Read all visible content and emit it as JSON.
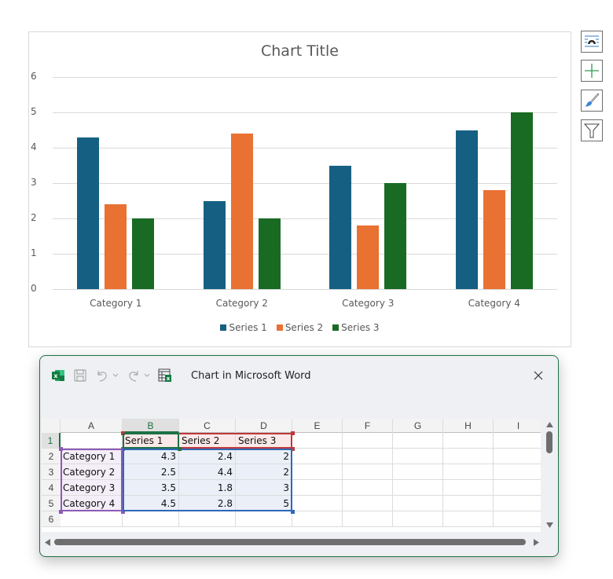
{
  "chart": {
    "title": "Chart Title",
    "y_ticks": [
      "0",
      "1",
      "2",
      "3",
      "4",
      "5",
      "6"
    ],
    "categories": [
      "Category 1",
      "Category 2",
      "Category 3",
      "Category 4"
    ],
    "legend": [
      "Series 1",
      "Series 2",
      "Series 3"
    ]
  },
  "chart_data": {
    "type": "bar",
    "title": "Chart Title",
    "xlabel": "",
    "ylabel": "",
    "categories": [
      "Category 1",
      "Category 2",
      "Category 3",
      "Category 4"
    ],
    "series": [
      {
        "name": "Series 1",
        "color": "#156082",
        "values": [
          4.3,
          2.5,
          3.5,
          4.5
        ]
      },
      {
        "name": "Series 2",
        "color": "#e97132",
        "values": [
          2.4,
          4.4,
          1.8,
          2.8
        ]
      },
      {
        "name": "Series 3",
        "color": "#196b24",
        "values": [
          2,
          2,
          3,
          5
        ]
      }
    ],
    "ylim": [
      0,
      6
    ],
    "yticks": [
      0,
      1,
      2,
      3,
      4,
      5,
      6
    ],
    "grid": true,
    "legend_position": "bottom"
  },
  "side_buttons": [
    {
      "name": "chart-layout-options",
      "icon": "layout-options-icon"
    },
    {
      "name": "chart-elements",
      "icon": "plus-icon"
    },
    {
      "name": "chart-styles",
      "icon": "paintbrush-icon"
    },
    {
      "name": "chart-filters",
      "icon": "filter-icon"
    }
  ],
  "excel": {
    "title": "Chart in Microsoft Word",
    "columns": [
      "A",
      "B",
      "C",
      "D",
      "E",
      "F",
      "G",
      "H",
      "I"
    ],
    "rows": [
      "1",
      "2",
      "3",
      "4",
      "5",
      "6"
    ],
    "cells": [
      [
        "",
        "Series 1",
        "Series 2",
        "Series 3"
      ],
      [
        "Category 1",
        "4.3",
        "2.4",
        "2"
      ],
      [
        "Category 2",
        "2.5",
        "4.4",
        "2"
      ],
      [
        "Category 3",
        "3.5",
        "1.8",
        "3"
      ],
      [
        "Category 4",
        "4.5",
        "2.8",
        "5"
      ]
    ],
    "colors": {
      "accent": "#1e7145",
      "category_range": "#8e5bb5",
      "series_name_range": "#c0393b",
      "value_range": "#2e68b8"
    }
  }
}
